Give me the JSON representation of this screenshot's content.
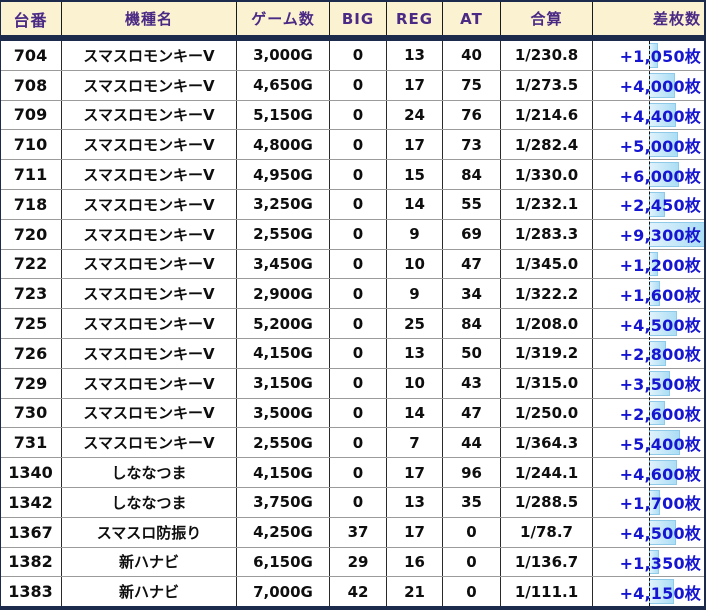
{
  "table": {
    "headers": [
      "台番",
      "機種名",
      "ゲーム数",
      "BIG",
      "REG",
      "AT",
      "合算",
      "差枚数"
    ],
    "rows": [
      {
        "no": "704",
        "model": "スマスロモンキーV",
        "games": "3,000G",
        "big": "0",
        "reg": "13",
        "at": "40",
        "rate": "1/230.8",
        "diff": "+1,050枚",
        "hl": 9
      },
      {
        "no": "708",
        "model": "スマスロモンキーV",
        "games": "4,650G",
        "big": "0",
        "reg": "17",
        "at": "75",
        "rate": "1/273.5",
        "diff": "+4,000枚",
        "hl": 26
      },
      {
        "no": "709",
        "model": "スマスロモンキーV",
        "games": "5,150G",
        "big": "0",
        "reg": "24",
        "at": "76",
        "rate": "1/214.6",
        "diff": "+4,400枚",
        "hl": 27
      },
      {
        "no": "710",
        "model": "スマスロモンキーV",
        "games": "4,800G",
        "big": "0",
        "reg": "17",
        "at": "73",
        "rate": "1/282.4",
        "diff": "+5,000枚",
        "hl": 29
      },
      {
        "no": "711",
        "model": "スマスロモンキーV",
        "games": "4,950G",
        "big": "0",
        "reg": "15",
        "at": "84",
        "rate": "1/330.0",
        "diff": "+6,000枚",
        "hl": 30
      },
      {
        "no": "718",
        "model": "スマスロモンキーV",
        "games": "3,250G",
        "big": "0",
        "reg": "14",
        "at": "55",
        "rate": "1/232.1",
        "diff": "+2,450枚",
        "hl": 16
      },
      {
        "no": "720",
        "model": "スマスロモンキーV",
        "games": "2,550G",
        "big": "0",
        "reg": "9",
        "at": "69",
        "rate": "1/283.3",
        "diff": "+9,300枚",
        "hl": 56
      },
      {
        "no": "722",
        "model": "スマスロモンキーV",
        "games": "3,450G",
        "big": "0",
        "reg": "10",
        "at": "47",
        "rate": "1/345.0",
        "diff": "+1,200枚",
        "hl": 9
      },
      {
        "no": "723",
        "model": "スマスロモンキーV",
        "games": "2,900G",
        "big": "0",
        "reg": "9",
        "at": "34",
        "rate": "1/322.2",
        "diff": "+1,600枚",
        "hl": 11
      },
      {
        "no": "725",
        "model": "スマスロモンキーV",
        "games": "5,200G",
        "big": "0",
        "reg": "25",
        "at": "84",
        "rate": "1/208.0",
        "diff": "+4,500枚",
        "hl": 28
      },
      {
        "no": "726",
        "model": "スマスロモンキーV",
        "games": "4,150G",
        "big": "0",
        "reg": "13",
        "at": "50",
        "rate": "1/319.2",
        "diff": "+2,800枚",
        "hl": 17
      },
      {
        "no": "729",
        "model": "スマスロモンキーV",
        "games": "3,150G",
        "big": "0",
        "reg": "10",
        "at": "43",
        "rate": "1/315.0",
        "diff": "+3,500枚",
        "hl": 21
      },
      {
        "no": "730",
        "model": "スマスロモンキーV",
        "games": "3,500G",
        "big": "0",
        "reg": "14",
        "at": "47",
        "rate": "1/250.0",
        "diff": "+2,600枚",
        "hl": 16
      },
      {
        "no": "731",
        "model": "スマスロモンキーV",
        "games": "2,550G",
        "big": "0",
        "reg": "7",
        "at": "44",
        "rate": "1/364.3",
        "diff": "+5,400枚",
        "hl": 31
      },
      {
        "no": "1340",
        "model": "しななつま",
        "games": "4,150G",
        "big": "0",
        "reg": "17",
        "at": "96",
        "rate": "1/244.1",
        "diff": "+4,600枚",
        "hl": 28
      },
      {
        "no": "1342",
        "model": "しななつま",
        "games": "3,750G",
        "big": "0",
        "reg": "13",
        "at": "35",
        "rate": "1/288.5",
        "diff": "+1,700枚",
        "hl": 11
      },
      {
        "no": "1367",
        "model": "スマスロ防振り",
        "games": "4,250G",
        "big": "37",
        "reg": "17",
        "at": "0",
        "rate": "1/78.7",
        "diff": "+4,500枚",
        "hl": 27
      },
      {
        "no": "1382",
        "model": "新ハナビ",
        "games": "6,150G",
        "big": "29",
        "reg": "16",
        "at": "0",
        "rate": "1/136.7",
        "diff": "+1,350枚",
        "hl": 10
      },
      {
        "no": "1383",
        "model": "新ハナビ",
        "games": "7,000G",
        "big": "42",
        "reg": "21",
        "at": "0",
        "rate": "1/111.1",
        "diff": "+4,150枚",
        "hl": 25
      }
    ]
  },
  "colors": {
    "header_bg": "#FBF2D1",
    "header_text": "#4B2A85",
    "frame_navy": "#1C2B4C",
    "diff_blue": "#1515D2",
    "highlight_fill": "#BCE4F6",
    "highlight_border": "#8FCBE9"
  }
}
